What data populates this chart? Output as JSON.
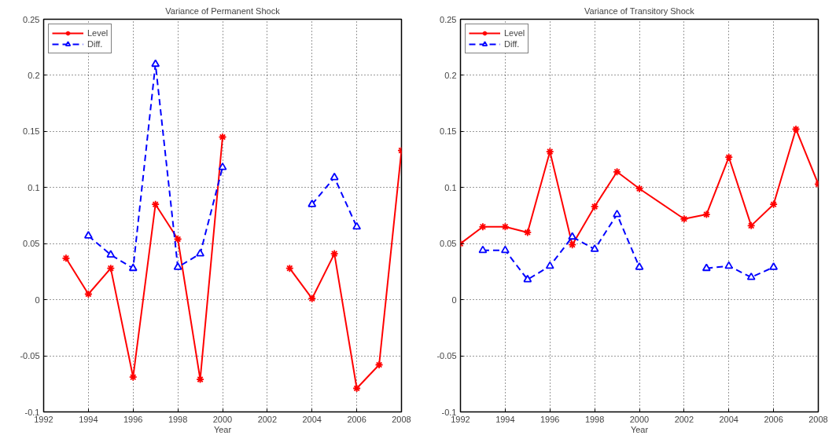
{
  "chart_data": [
    {
      "type": "line",
      "title": "Variance of Permanent Shock",
      "xlabel": "Year",
      "xlim": [
        1992,
        2008
      ],
      "xticks": [
        1992,
        1994,
        1996,
        1998,
        2000,
        2002,
        2004,
        2006,
        2008
      ],
      "ylim": [
        -0.1,
        0.25
      ],
      "yticks": [
        -0.1,
        -0.05,
        0,
        0.05,
        0.1,
        0.15,
        0.2,
        0.25
      ],
      "grid": true,
      "legend": "top left",
      "series": [
        {
          "name": "Level",
          "color": "#ff0000",
          "marker": "cross",
          "line_style": "solid",
          "x": [
            1993,
            1994,
            1995,
            1996,
            1997,
            1998,
            1999,
            2000,
            2001,
            2002,
            2003,
            2004,
            2005,
            2006,
            2007,
            2008
          ],
          "values": [
            0.037,
            0.005,
            0.028,
            -0.069,
            0.085,
            0.054,
            -0.071,
            0.145,
            null,
            null,
            0.028,
            0.001,
            0.041,
            -0.079,
            -0.058,
            0.133
          ]
        },
        {
          "name": "Diff.",
          "color": "#0000ff",
          "marker": "triangle",
          "line_style": "dashed",
          "x": [
            1994,
            1995,
            1996,
            1997,
            1998,
            1999,
            2000,
            2001,
            2002,
            2003,
            2004,
            2005,
            2006
          ],
          "values": [
            0.057,
            0.04,
            0.028,
            0.21,
            0.029,
            0.041,
            0.118,
            null,
            null,
            null,
            0.085,
            0.109,
            0.065
          ]
        }
      ]
    },
    {
      "type": "line",
      "title": "Variance of Transitory Shock",
      "xlabel": "Year",
      "xlim": [
        1992,
        2008
      ],
      "xticks": [
        1992,
        1994,
        1996,
        1998,
        2000,
        2002,
        2004,
        2006,
        2008
      ],
      "ylim": [
        -0.1,
        0.25
      ],
      "yticks": [
        -0.1,
        -0.05,
        0,
        0.05,
        0.1,
        0.15,
        0.2,
        0.25
      ],
      "grid": true,
      "legend": "top left",
      "series": [
        {
          "name": "Level",
          "color": "#ff0000",
          "marker": "cross",
          "line_style": "solid",
          "x": [
            1992,
            1993,
            1994,
            1995,
            1996,
            1997,
            1998,
            1999,
            2000,
            2002,
            2003,
            2004,
            2005,
            2006,
            2007,
            2008
          ],
          "values": [
            0.05,
            0.065,
            0.065,
            0.06,
            0.132,
            0.049,
            0.083,
            0.114,
            0.099,
            0.072,
            0.076,
            0.127,
            0.066,
            0.085,
            0.152,
            0.103
          ]
        },
        {
          "name": "Diff.",
          "color": "#0000ff",
          "marker": "triangle",
          "line_style": "dashed",
          "x": [
            1993,
            1994,
            1995,
            1996,
            1997,
            1998,
            1999,
            2000,
            2001,
            2002,
            2003,
            2004,
            2005,
            2006
          ],
          "values": [
            0.044,
            0.044,
            0.018,
            0.03,
            0.056,
            0.045,
            0.076,
            0.029,
            null,
            null,
            0.028,
            0.03,
            0.02,
            0.029
          ]
        }
      ]
    }
  ]
}
